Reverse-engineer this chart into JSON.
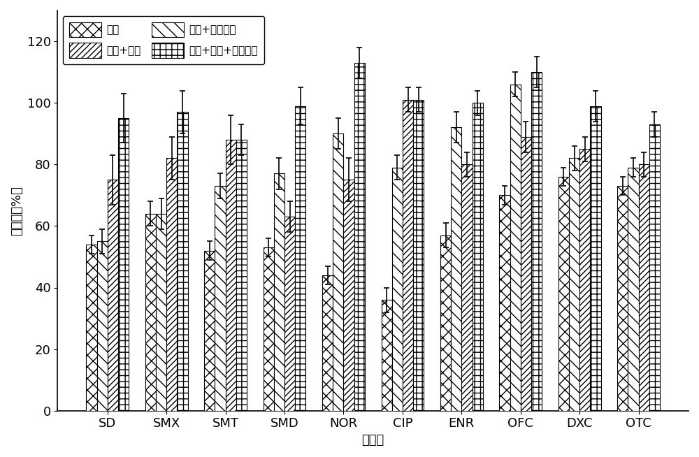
{
  "categories": [
    "SD",
    "SMX",
    "SMT",
    "SMD",
    "NOR",
    "CIP",
    "ENR",
    "OFC",
    "DXC",
    "OTC"
  ],
  "series": [
    {
      "name": "甲醇",
      "values": [
        54,
        64,
        52,
        53,
        44,
        36,
        57,
        70,
        76,
        73
      ],
      "errors": [
        3,
        4,
        3,
        3,
        3,
        4,
        4,
        3,
        3,
        3
      ],
      "hatch": "xx",
      "facecolor": "white",
      "edgecolor": "black"
    },
    {
      "name": "甲醇+乙酸乙酯",
      "values": [
        55,
        64,
        73,
        77,
        90,
        79,
        92,
        106,
        82,
        79
      ],
      "errors": [
        4,
        5,
        4,
        5,
        5,
        4,
        5,
        4,
        4,
        3
      ],
      "hatch": "\\\\",
      "facecolor": "white",
      "edgecolor": "black"
    },
    {
      "name": "甲醇+乙脸",
      "values": [
        75,
        82,
        88,
        63,
        75,
        101,
        80,
        89,
        85,
        80
      ],
      "errors": [
        8,
        7,
        8,
        5,
        7,
        4,
        4,
        5,
        4,
        4
      ],
      "hatch": "////",
      "facecolor": "white",
      "edgecolor": "black"
    },
    {
      "name": "甲醇+乙脸+乙酸乙酯",
      "values": [
        95,
        97,
        88,
        99,
        113,
        101,
        100,
        110,
        99,
        93
      ],
      "errors": [
        8,
        7,
        5,
        6,
        5,
        4,
        4,
        5,
        5,
        4
      ],
      "hatch": "++",
      "facecolor": "white",
      "edgecolor": "black"
    }
  ],
  "ylabel": "回收率（%）",
  "xlabel": "抗生素",
  "ylim": [
    0,
    130
  ],
  "yticks": [
    0,
    20,
    40,
    60,
    80,
    100,
    120
  ],
  "bar_width": 0.18,
  "figsize": [
    10.0,
    6.54
  ],
  "dpi": 100,
  "font_size": 13,
  "axis_font_size": 13,
  "legend_font_size": 11
}
